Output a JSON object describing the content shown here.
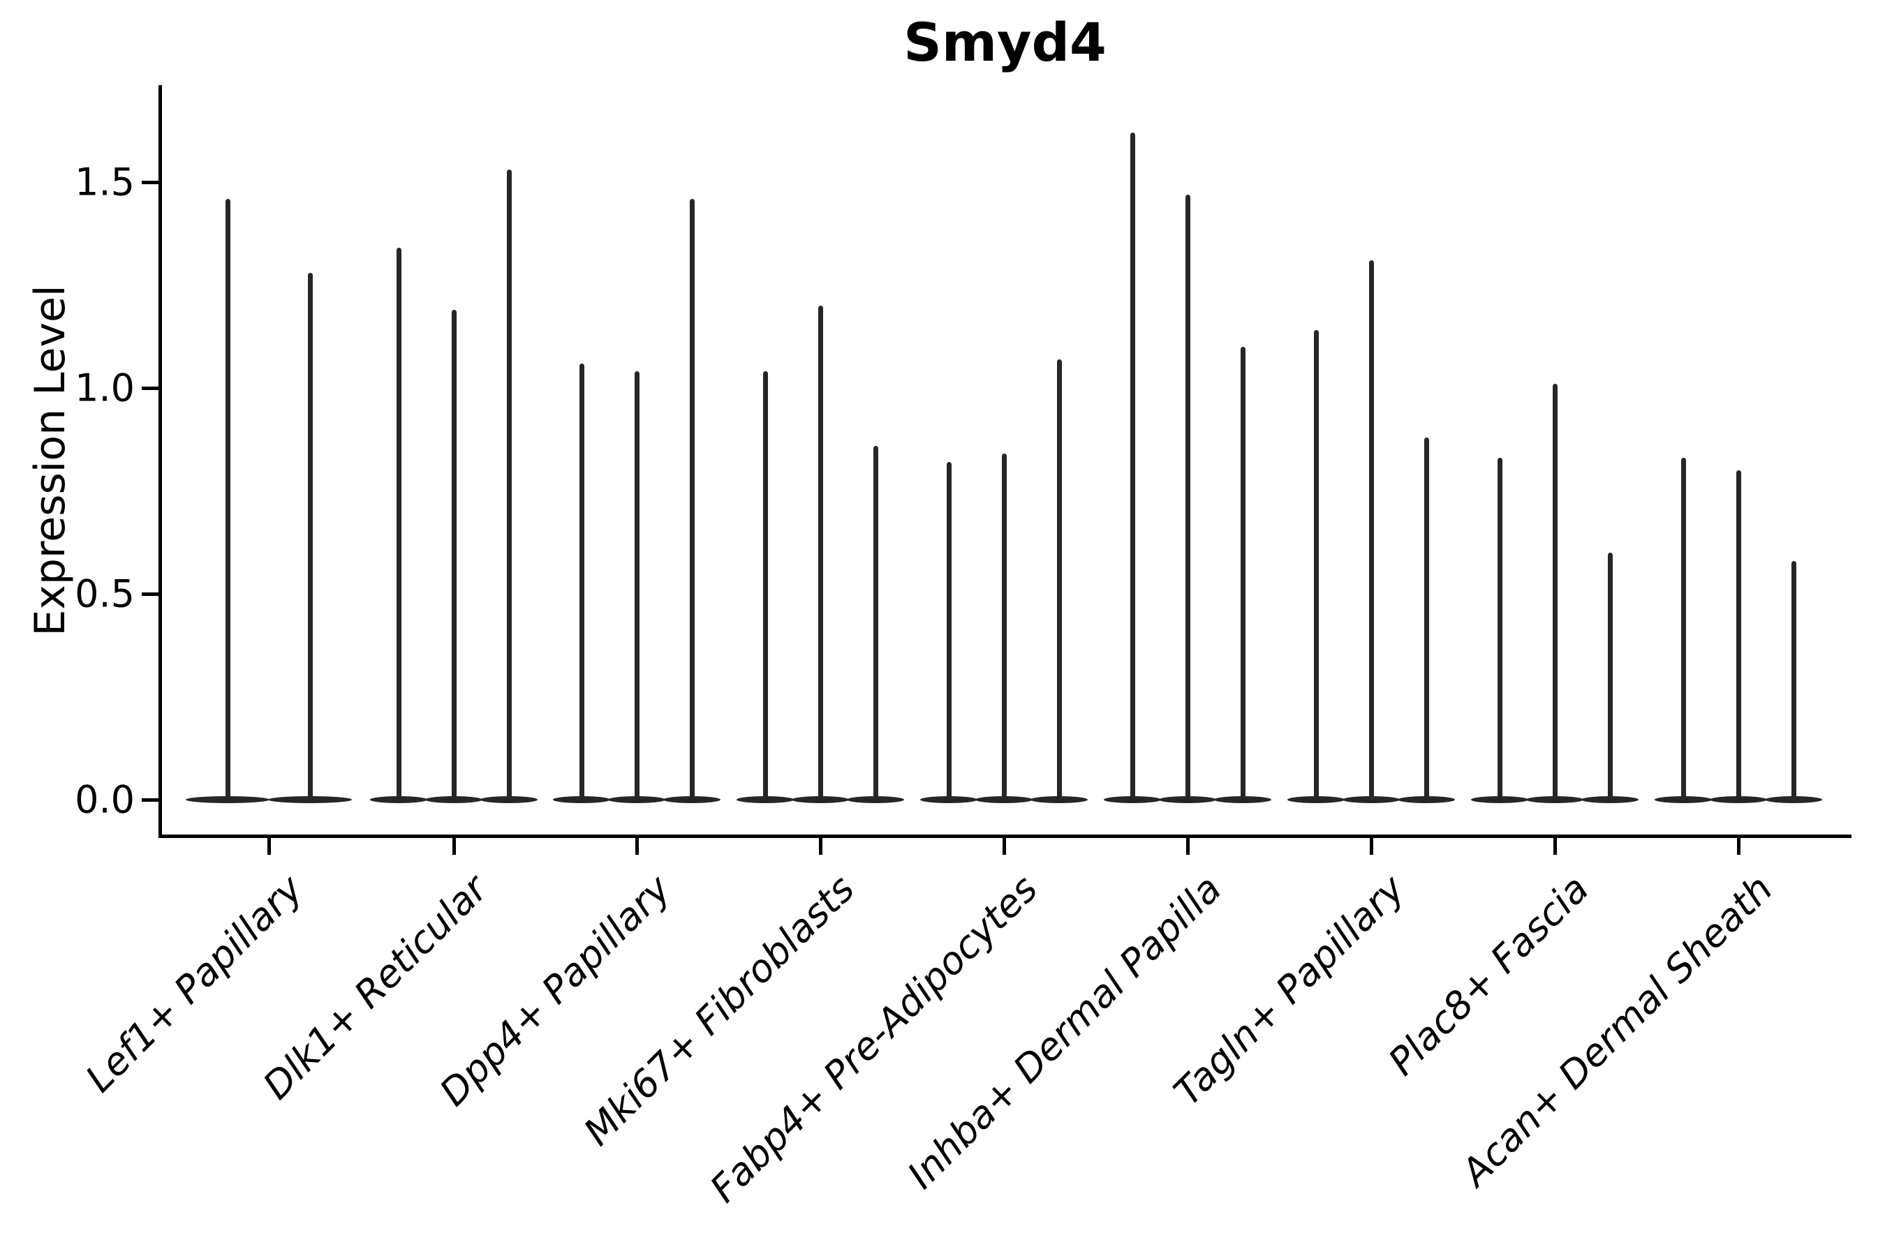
{
  "title": "Smyd4",
  "y_axis": {
    "label": "Expression Level",
    "tick_labels": [
      "0.0",
      "0.5",
      "1.0",
      "1.5"
    ]
  },
  "chart_data": {
    "type": "violin",
    "title": "Smyd4",
    "xlabel": "",
    "ylabel": "Expression Level",
    "ylim": [
      -0.08,
      1.74
    ],
    "yticks": [
      0.0,
      0.5,
      1.0,
      1.5
    ],
    "grid": false,
    "legend": "none",
    "violin_color": "#262626",
    "baseline_value": 0.0,
    "description": "Each category shows narrow violins (nearly all mass at 0 with a thin spike to the maximum expression value).",
    "categories": [
      "Lef1+ Papillary",
      "Dlk1+ Reticular",
      "Dpp4+ Papillary",
      "Mki67+ Fibroblasts",
      "Fabp4+ Pre-Adipocytes",
      "Inhba+ Dermal Papilla",
      "Tagln+ Papillary",
      "Plac8+ Fascia",
      "Acan+ Dermal Sheath"
    ],
    "violins": [
      {
        "category": "Lef1+ Papillary",
        "maxima": [
          1.46,
          1.28
        ]
      },
      {
        "category": "Dlk1+ Reticular",
        "maxima": [
          1.34,
          1.19,
          1.53
        ]
      },
      {
        "category": "Dpp4+ Papillary",
        "maxima": [
          1.06,
          1.04,
          1.46
        ]
      },
      {
        "category": "Mki67+ Fibroblasts",
        "maxima": [
          1.04,
          1.2,
          0.86
        ]
      },
      {
        "category": "Fabp4+ Pre-Adipocytes",
        "maxima": [
          0.82,
          0.84,
          1.07
        ]
      },
      {
        "category": "Inhba+ Dermal Papilla",
        "maxima": [
          1.62,
          1.47,
          1.1
        ]
      },
      {
        "category": "Tagln+ Papillary",
        "maxima": [
          1.14,
          1.31,
          0.88
        ]
      },
      {
        "category": "Plac8+ Fascia",
        "maxima": [
          0.83,
          1.01,
          0.6
        ]
      },
      {
        "category": "Acan+ Dermal Sheath",
        "maxima": [
          0.83,
          0.8,
          0.58
        ]
      }
    ]
  }
}
